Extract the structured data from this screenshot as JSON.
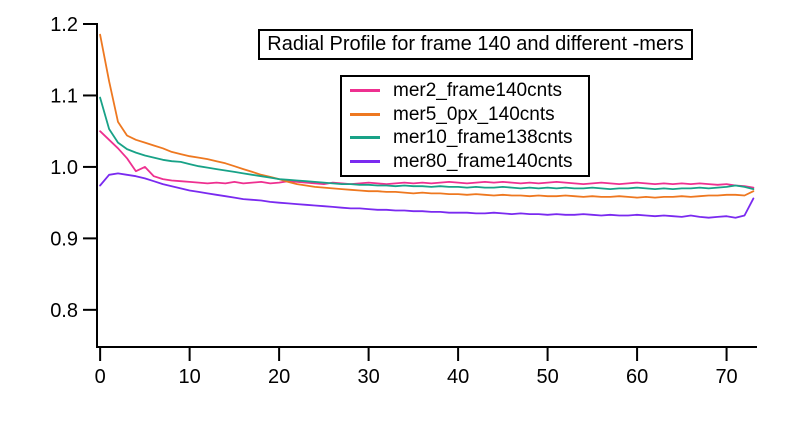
{
  "chart_data": {
    "type": "line",
    "title": "Radial Profile for frame 140 and different -mers",
    "xlabel": "",
    "ylabel": "",
    "grid": false,
    "legend_position": "upper-center-inside",
    "axis_color": "#000000",
    "background_color": "#ffffff",
    "xlim": [
      -0.35,
      73.4
    ],
    "ylim": [
      0.748,
      1.2
    ],
    "x_ticks": [
      0,
      10,
      20,
      30,
      40,
      50,
      60,
      70
    ],
    "x_tick_labels": [
      "0",
      "10",
      "20",
      "30",
      "40",
      "50",
      "60",
      "70"
    ],
    "y_ticks": [
      0.8,
      0.9,
      1.0,
      1.1,
      1.2
    ],
    "y_tick_labels": [
      "0.8",
      "0.9",
      "1.0",
      "1.1",
      "1.2"
    ],
    "x": [
      0,
      1,
      2,
      3,
      4,
      5,
      6,
      7,
      8,
      9,
      10,
      11,
      12,
      13,
      14,
      15,
      16,
      17,
      18,
      19,
      20,
      21,
      22,
      23,
      24,
      25,
      26,
      27,
      28,
      29,
      30,
      31,
      32,
      33,
      34,
      35,
      36,
      37,
      38,
      39,
      40,
      41,
      42,
      43,
      44,
      45,
      46,
      47,
      48,
      49,
      50,
      51,
      52,
      53,
      54,
      55,
      56,
      57,
      58,
      59,
      60,
      61,
      62,
      63,
      64,
      65,
      66,
      67,
      68,
      69,
      70,
      71,
      72,
      73
    ],
    "series": [
      {
        "name": "mer2_frame140cnts",
        "color": "#ee3090",
        "y": [
          1.05,
          1.038,
          1.026,
          1.012,
          0.994,
          1.0,
          0.987,
          0.983,
          0.981,
          0.98,
          0.979,
          0.978,
          0.977,
          0.978,
          0.977,
          0.979,
          0.977,
          0.978,
          0.979,
          0.977,
          0.978,
          0.98,
          0.979,
          0.978,
          0.977,
          0.976,
          0.978,
          0.977,
          0.976,
          0.977,
          0.978,
          0.977,
          0.976,
          0.977,
          0.978,
          0.977,
          0.978,
          0.977,
          0.978,
          0.979,
          0.978,
          0.977,
          0.978,
          0.979,
          0.978,
          0.979,
          0.978,
          0.977,
          0.978,
          0.977,
          0.978,
          0.979,
          0.978,
          0.977,
          0.976,
          0.977,
          0.978,
          0.977,
          0.976,
          0.977,
          0.978,
          0.977,
          0.976,
          0.977,
          0.976,
          0.977,
          0.976,
          0.977,
          0.976,
          0.975,
          0.976,
          0.974,
          0.973,
          0.971
        ]
      },
      {
        "name": "mer5_0px_140cnts",
        "color": "#ee7820",
        "y": [
          1.185,
          1.12,
          1.063,
          1.044,
          1.038,
          1.034,
          1.03,
          1.026,
          1.021,
          1.018,
          1.015,
          1.013,
          1.011,
          1.008,
          1.005,
          1.001,
          0.997,
          0.993,
          0.989,
          0.986,
          0.983,
          0.979,
          0.976,
          0.974,
          0.972,
          0.971,
          0.97,
          0.969,
          0.968,
          0.967,
          0.966,
          0.966,
          0.965,
          0.965,
          0.964,
          0.963,
          0.964,
          0.963,
          0.963,
          0.962,
          0.962,
          0.961,
          0.962,
          0.961,
          0.96,
          0.961,
          0.96,
          0.96,
          0.959,
          0.96,
          0.959,
          0.959,
          0.96,
          0.959,
          0.958,
          0.959,
          0.958,
          0.958,
          0.959,
          0.958,
          0.957,
          0.958,
          0.957,
          0.958,
          0.958,
          0.959,
          0.958,
          0.959,
          0.96,
          0.96,
          0.961,
          0.961,
          0.96,
          0.966
        ]
      },
      {
        "name": "mer10_frame138cnts",
        "color": "#18a287",
        "y": [
          1.097,
          1.053,
          1.034,
          1.025,
          1.02,
          1.016,
          1.013,
          1.01,
          1.008,
          1.007,
          1.004,
          1.001,
          0.999,
          0.997,
          0.995,
          0.993,
          0.991,
          0.989,
          0.987,
          0.985,
          0.983,
          0.982,
          0.981,
          0.98,
          0.979,
          0.978,
          0.977,
          0.976,
          0.976,
          0.975,
          0.975,
          0.974,
          0.974,
          0.973,
          0.974,
          0.973,
          0.973,
          0.972,
          0.973,
          0.972,
          0.972,
          0.971,
          0.972,
          0.971,
          0.971,
          0.972,
          0.971,
          0.97,
          0.971,
          0.97,
          0.971,
          0.97,
          0.971,
          0.97,
          0.97,
          0.971,
          0.97,
          0.969,
          0.97,
          0.97,
          0.971,
          0.97,
          0.969,
          0.97,
          0.969,
          0.97,
          0.97,
          0.971,
          0.97,
          0.971,
          0.972,
          0.974,
          0.972,
          0.969
        ]
      },
      {
        "name": "mer80_frame140cnts",
        "color": "#7a2af0",
        "y": [
          0.974,
          0.989,
          0.991,
          0.989,
          0.987,
          0.984,
          0.98,
          0.976,
          0.973,
          0.97,
          0.967,
          0.965,
          0.963,
          0.961,
          0.959,
          0.957,
          0.955,
          0.954,
          0.953,
          0.951,
          0.95,
          0.949,
          0.948,
          0.947,
          0.946,
          0.945,
          0.944,
          0.943,
          0.942,
          0.942,
          0.941,
          0.94,
          0.94,
          0.939,
          0.939,
          0.938,
          0.938,
          0.937,
          0.937,
          0.936,
          0.936,
          0.936,
          0.935,
          0.935,
          0.936,
          0.935,
          0.934,
          0.935,
          0.934,
          0.934,
          0.933,
          0.934,
          0.933,
          0.933,
          0.934,
          0.933,
          0.932,
          0.933,
          0.932,
          0.932,
          0.933,
          0.932,
          0.931,
          0.932,
          0.931,
          0.93,
          0.932,
          0.93,
          0.929,
          0.93,
          0.931,
          0.929,
          0.932,
          0.956
        ]
      }
    ]
  }
}
